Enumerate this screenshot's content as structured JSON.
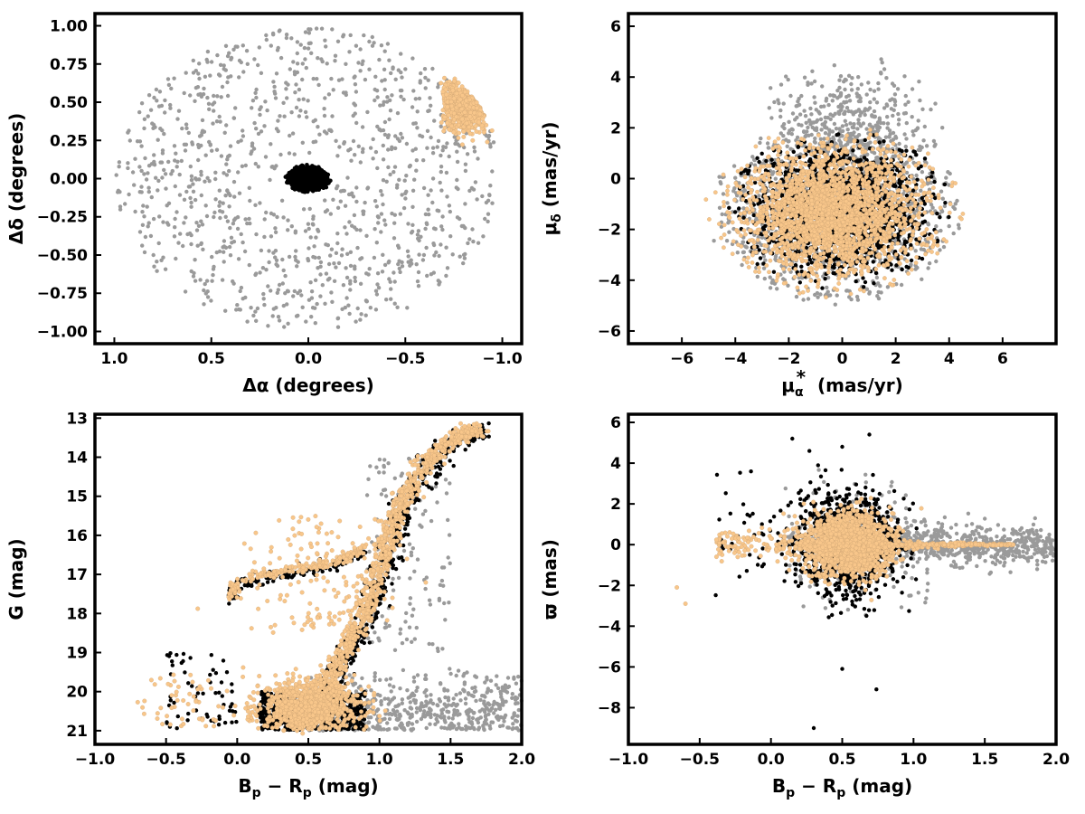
{
  "colors": {
    "field": "#9a9a9a",
    "cluster": "#000000",
    "stream": "#f8c68a",
    "stream_edge": "#c8a070"
  },
  "chart_data": [
    {
      "id": "sky",
      "type": "scatter",
      "xlabel": "Δα (degrees)",
      "ylabel": "Δδ (degrees)",
      "xlim": [
        1.1,
        -1.1
      ],
      "ylim": [
        -1.08,
        1.08
      ],
      "xticks": [
        1.0,
        0.5,
        0.0,
        -0.5,
        -1.0
      ],
      "xtick_labels": [
        "1.0",
        "0.5",
        "0.0",
        "−0.5",
        "−1.0"
      ],
      "yticks": [
        1.0,
        0.75,
        0.5,
        0.25,
        0.0,
        -0.25,
        -0.5,
        -0.75,
        -1.0
      ],
      "ytick_labels": [
        "1.00",
        "0.75",
        "0.50",
        "0.25",
        "0.00",
        "−0.25",
        "−0.50",
        "−0.75",
        "−1.00"
      ],
      "grid": false,
      "series": [
        {
          "role": "field",
          "description": "uniform disk of radius 1.0 deg centred at (0,0)",
          "center": [
            0,
            0
          ],
          "radius": 1.0
        },
        {
          "role": "cluster",
          "description": "dense clump",
          "center": [
            0.0,
            0.0
          ],
          "radius": [
            0.1,
            0.07
          ]
        },
        {
          "role": "stream",
          "description": "clump near upper right",
          "center": [
            -0.8,
            0.48
          ],
          "radius": [
            0.15,
            0.12
          ]
        }
      ]
    },
    {
      "id": "proper-motion",
      "type": "scatter",
      "xlabel": "μα* (mas/yr)",
      "ylabel": "μδ (mas/yr)",
      "xlim": [
        -8,
        8
      ],
      "ylim": [
        -6.5,
        6.5
      ],
      "xticks": [
        -6,
        -4,
        -2,
        0,
        2,
        4,
        6
      ],
      "xtick_labels": [
        "−6",
        "−4",
        "−2",
        "0",
        "2",
        "4",
        "6"
      ],
      "yticks": [
        -6,
        -4,
        -2,
        0,
        2,
        4,
        6
      ],
      "ytick_labels": [
        "−6",
        "−4",
        "−2",
        "0",
        "2",
        "4",
        "6"
      ],
      "grid": false,
      "series": [
        {
          "role": "field",
          "center": [
            0,
            -1
          ],
          "radius": [
            4.8,
            3.8
          ]
        },
        {
          "role": "cluster",
          "center": [
            0,
            -1.2
          ],
          "radius": [
            4.2,
            3.3
          ]
        },
        {
          "role": "stream",
          "center": [
            -0.2,
            -1.4
          ],
          "radius": [
            4.5,
            3.4
          ]
        }
      ]
    },
    {
      "id": "cmd",
      "type": "scatter",
      "xlabel": "Bp − Rp (mag)",
      "ylabel": "G (mag)",
      "xlim": [
        -1.0,
        2.0
      ],
      "ylim": [
        21.35,
        12.9
      ],
      "xticks": [
        -1.0,
        -0.5,
        0.0,
        0.5,
        1.0,
        1.5,
        2.0
      ],
      "xtick_labels": [
        "−1.0",
        "−0.5",
        "0.0",
        "0.5",
        "1.0",
        "1.5",
        "2.0"
      ],
      "yticks": [
        21,
        20,
        19,
        18,
        17,
        16,
        15,
        14,
        13
      ],
      "ytick_labels": [
        "21",
        "20",
        "19",
        "18",
        "17",
        "16",
        "15",
        "14",
        "13"
      ],
      "grid": false,
      "series": [
        {
          "role": "field",
          "description": "faint scattered stars, G 19.5–21, colour 0.9–2.0"
        },
        {
          "role": "cluster",
          "description": "main sequence, red giant branch, horizontal branch"
        },
        {
          "role": "stream",
          "description": "main sequence, red giant branch to G≈13.3 at colour 1.68, horizontal branch"
        }
      ],
      "rgb_ridge": [
        [
          0.45,
          20.9
        ],
        [
          0.6,
          19.8
        ],
        [
          0.78,
          18.8
        ],
        [
          0.9,
          17.9
        ],
        [
          0.98,
          17.0
        ],
        [
          1.05,
          16.2
        ],
        [
          1.12,
          15.4
        ],
        [
          1.22,
          14.8
        ],
        [
          1.32,
          14.2
        ],
        [
          1.45,
          13.7
        ],
        [
          1.6,
          13.4
        ],
        [
          1.68,
          13.3
        ]
      ],
      "horizontal_branch": [
        [
          -0.05,
          17.6
        ],
        [
          0.0,
          17.2
        ],
        [
          0.2,
          17.0
        ],
        [
          0.4,
          16.85
        ],
        [
          0.6,
          16.75
        ],
        [
          0.75,
          16.6
        ],
        [
          0.9,
          16.3
        ]
      ]
    },
    {
      "id": "parallax",
      "type": "scatter",
      "xlabel": "Bp − Rp (mag)",
      "ylabel": "ϖ (mas)",
      "xlim": [
        -1.0,
        2.0
      ],
      "ylim": [
        -9.8,
        6.4
      ],
      "xticks": [
        -1.0,
        -0.5,
        0.0,
        0.5,
        1.0,
        1.5,
        2.0
      ],
      "xtick_labels": [
        "−1.0",
        "−0.5",
        "0.0",
        "0.5",
        "1.0",
        "1.5",
        "2.0"
      ],
      "yticks": [
        6,
        4,
        2,
        0,
        -2,
        -4,
        -6,
        -8
      ],
      "ytick_labels": [
        "6",
        "4",
        "2",
        "0",
        "−2",
        "−4",
        "−6",
        "−8"
      ],
      "grid": false,
      "series": [
        {
          "role": "field",
          "description": "spread around 0, colour −0.4–2.0"
        },
        {
          "role": "cluster",
          "description": "concentrated near colour 0.55, ϖ 0, extremes from −9 to 5.4"
        },
        {
          "role": "stream",
          "description": "concentrated near colour 0.55, ϖ 0, thin tail to colour 1.7"
        }
      ]
    }
  ]
}
